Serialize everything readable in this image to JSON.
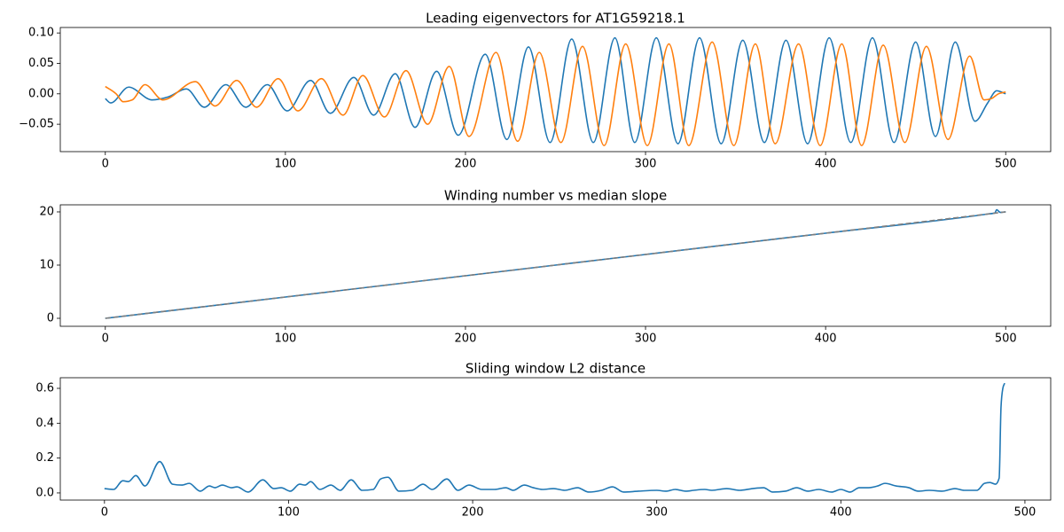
{
  "chart_data": [
    {
      "type": "line",
      "title": "Leading eigenvectors for AT1G59218.1",
      "xlim": [
        -25,
        525
      ],
      "xticks": [
        0,
        100,
        200,
        300,
        400,
        500
      ],
      "ylim": [
        -0.095,
        0.109
      ],
      "yticks": [
        {
          "value": -0.05,
          "label": "−0.05"
        },
        {
          "value": 0,
          "label": "0.00"
        },
        {
          "value": 0.05,
          "label": "0.05"
        },
        {
          "value": 0.1,
          "label": "0.10"
        }
      ],
      "series": [
        {
          "color": "#1f77b4",
          "x": [
            0,
            3,
            13,
            26,
            35,
            45,
            55,
            67,
            78,
            90,
            101,
            114,
            125,
            138,
            149,
            161,
            172,
            184,
            196,
            211,
            223,
            235,
            247,
            259,
            271,
            283,
            294,
            306,
            318,
            330,
            342,
            354,
            366,
            378,
            390,
            402,
            414,
            426,
            438,
            450,
            461,
            472,
            483,
            490,
            495,
            500
          ],
          "values": [
            -0.008,
            -0.015,
            0.011,
            -0.01,
            -0.005,
            0.008,
            -0.022,
            0.015,
            -0.022,
            0.015,
            -0.028,
            0.022,
            -0.032,
            0.027,
            -0.035,
            0.033,
            -0.055,
            0.037,
            -0.068,
            0.065,
            -0.075,
            0.077,
            -0.08,
            0.09,
            -0.08,
            0.092,
            -0.08,
            0.092,
            -0.082,
            0.092,
            -0.082,
            0.088,
            -0.08,
            0.088,
            -0.082,
            0.092,
            -0.08,
            0.092,
            -0.08,
            0.085,
            -0.07,
            0.085,
            -0.045,
            -0.015,
            0.005,
            0.0
          ]
        },
        {
          "color": "#ff7f0e",
          "x": [
            0,
            6,
            10,
            15,
            22,
            32,
            50,
            61,
            73,
            84,
            96,
            107,
            120,
            132,
            143,
            155,
            167,
            179,
            191,
            202,
            217,
            229,
            241,
            253,
            265,
            277,
            289,
            301,
            313,
            324,
            337,
            349,
            361,
            372,
            385,
            397,
            409,
            420,
            432,
            444,
            456,
            468,
            480,
            488,
            492,
            496,
            500
          ],
          "values": [
            0.012,
            0.0,
            -0.013,
            -0.01,
            0.015,
            -0.01,
            0.02,
            -0.02,
            0.022,
            -0.022,
            0.025,
            -0.028,
            0.025,
            -0.035,
            0.03,
            -0.038,
            0.038,
            -0.05,
            0.045,
            -0.07,
            0.068,
            -0.078,
            0.068,
            -0.08,
            0.078,
            -0.085,
            0.082,
            -0.085,
            0.082,
            -0.085,
            0.085,
            -0.085,
            0.082,
            -0.082,
            0.082,
            -0.085,
            0.082,
            -0.085,
            0.08,
            -0.08,
            0.078,
            -0.075,
            0.062,
            -0.01,
            -0.008,
            0.0,
            0.003
          ]
        }
      ]
    },
    {
      "type": "line",
      "title": "Winding number vs median slope",
      "xlim": [
        -25,
        525
      ],
      "xticks": [
        0,
        100,
        200,
        300,
        400,
        500
      ],
      "ylim": [
        -1.5,
        21.33
      ],
      "yticks": [
        0,
        10,
        20
      ],
      "series": [
        {
          "color": "#1f77b4",
          "x": [
            0,
            100,
            200,
            300,
            400,
            490,
            494,
            495,
            497,
            500
          ],
          "values": [
            0,
            4,
            8,
            12,
            16,
            19.6,
            19.8,
            20.4,
            19.9,
            20
          ]
        },
        {
          "color": "#7f7f7f",
          "dashed": true,
          "x": [
            0,
            500
          ],
          "values": [
            0,
            20
          ]
        }
      ]
    },
    {
      "type": "line",
      "title": "Sliding window L2 distance",
      "xlim": [
        -24,
        514
      ],
      "xticks": [
        0,
        100,
        200,
        300,
        400,
        500
      ],
      "ylim": [
        -0.041,
        0.661
      ],
      "yticks": [
        {
          "value": 0,
          "label": "0.0"
        },
        {
          "value": 0.2,
          "label": "0.2"
        },
        {
          "value": 0.4,
          "label": "0.4"
        },
        {
          "value": 0.6,
          "label": "0.6"
        }
      ],
      "series": [
        {
          "color": "#1f77b4",
          "x": [
            0,
            5,
            10,
            13,
            17,
            22,
            30,
            37,
            42,
            46,
            52,
            57,
            60,
            64,
            69,
            72,
            78,
            86,
            92,
            96,
            101,
            106,
            109,
            112,
            117,
            123,
            128,
            134,
            140,
            146,
            150,
            154,
            160,
            167,
            173,
            178,
            186,
            192,
            198,
            205,
            212,
            218,
            222,
            228,
            233,
            238,
            244,
            250,
            257,
            263,
            270,
            276,
            282,
            290,
            300,
            305,
            310,
            316,
            320,
            326,
            330,
            338,
            345,
            352,
            358,
            363,
            370,
            376,
            382,
            388,
            395,
            400,
            405,
            410,
            415,
            420,
            424,
            430,
            437,
            442,
            448,
            455,
            462,
            467,
            474,
            478,
            481,
            484,
            486,
            487,
            488,
            489
          ],
          "values": [
            0.025,
            0.02,
            0.07,
            0.065,
            0.1,
            0.04,
            0.18,
            0.05,
            0.045,
            0.055,
            0.01,
            0.04,
            0.03,
            0.045,
            0.03,
            0.035,
            0.005,
            0.075,
            0.025,
            0.03,
            0.01,
            0.05,
            0.045,
            0.065,
            0.02,
            0.045,
            0.015,
            0.075,
            0.015,
            0.02,
            0.08,
            0.09,
            0.01,
            0.015,
            0.05,
            0.02,
            0.08,
            0.015,
            0.045,
            0.02,
            0.02,
            0.03,
            0.015,
            0.045,
            0.03,
            0.02,
            0.025,
            0.015,
            0.03,
            0.005,
            0.015,
            0.035,
            0.005,
            0.01,
            0.015,
            0.01,
            0.02,
            0.01,
            0.015,
            0.02,
            0.015,
            0.025,
            0.015,
            0.025,
            0.03,
            0.005,
            0.01,
            0.03,
            0.01,
            0.02,
            0.005,
            0.02,
            0.005,
            0.03,
            0.03,
            0.04,
            0.055,
            0.04,
            0.03,
            0.01,
            0.015,
            0.01,
            0.025,
            0.015,
            0.015,
            0.055,
            0.06,
            0.05,
            0.085,
            0.49,
            0.6,
            0.63
          ]
        }
      ]
    }
  ]
}
